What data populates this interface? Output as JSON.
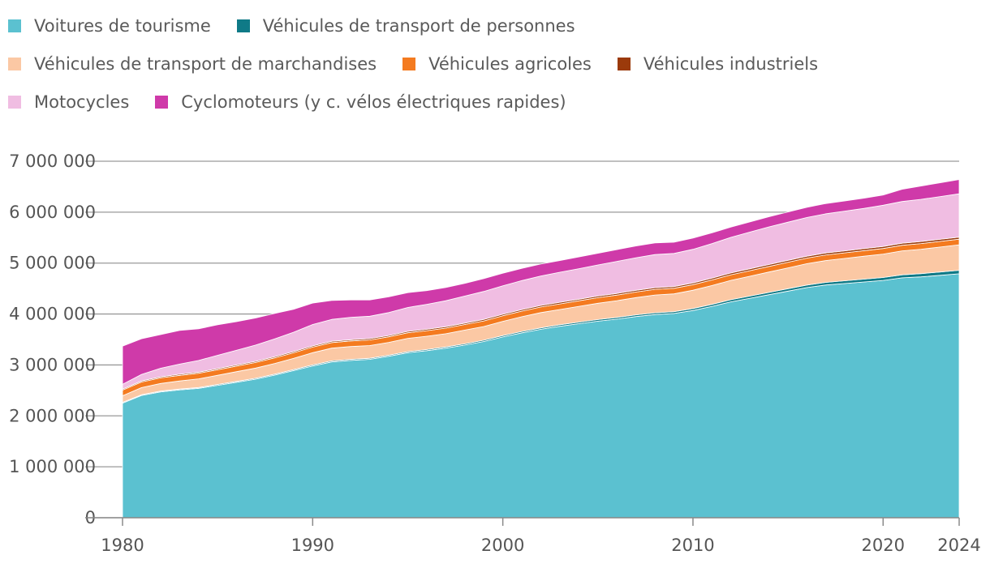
{
  "legend": [
    [
      "Voitures de tourisme",
      "Véhicules de transport de personnes"
    ],
    [
      "Véhicules de transport de marchandises",
      "Véhicules agricoles",
      "Véhicules industriels"
    ],
    [
      "Motocycles",
      "Cyclomoteurs (y c. vélos électriques rapides)"
    ]
  ],
  "chart_data": {
    "type": "area",
    "stacked": true,
    "x": [
      1980,
      1981,
      1982,
      1983,
      1984,
      1985,
      1986,
      1987,
      1988,
      1989,
      1990,
      1991,
      1992,
      1993,
      1994,
      1995,
      1996,
      1997,
      1998,
      1999,
      2000,
      2001,
      2002,
      2003,
      2004,
      2005,
      2006,
      2007,
      2008,
      2009,
      2010,
      2011,
      2012,
      2013,
      2014,
      2015,
      2016,
      2017,
      2018,
      2019,
      2020,
      2021,
      2022,
      2023,
      2024
    ],
    "x_ticks": [
      1980,
      1990,
      2000,
      2010,
      2020,
      2024
    ],
    "y_ticks": [
      0,
      1000000,
      2000000,
      3000000,
      4000000,
      5000000,
      6000000,
      7000000
    ],
    "y_tick_labels": [
      "0",
      "1 000 000",
      "2 000 000",
      "3 000 000",
      "4 000 000",
      "5 000 000",
      "6 000 000",
      "7 000 000"
    ],
    "ylim": [
      0,
      7000000
    ],
    "grid": "horizontal",
    "legend_position": "top",
    "series": [
      {
        "name": "Voitures de tourisme",
        "color": "#5bc1d0",
        "values": [
          2250000,
          2400000,
          2470000,
          2510000,
          2540000,
          2600000,
          2660000,
          2720000,
          2800000,
          2890000,
          2980000,
          3060000,
          3090000,
          3110000,
          3170000,
          3240000,
          3280000,
          3330000,
          3390000,
          3460000,
          3550000,
          3630000,
          3700000,
          3760000,
          3810000,
          3860000,
          3900000,
          3950000,
          3990000,
          4010000,
          4070000,
          4150000,
          4240000,
          4310000,
          4380000,
          4450000,
          4520000,
          4570000,
          4600000,
          4630000,
          4660000,
          4710000,
          4730000,
          4760000,
          4790000
        ]
      },
      {
        "name": "Véhicules de transport de personnes",
        "color": "#0f7a87",
        "values": [
          15000,
          15000,
          16000,
          16000,
          17000,
          17000,
          18000,
          18000,
          19000,
          19000,
          20000,
          20000,
          21000,
          21000,
          22000,
          22000,
          23000,
          23000,
          24000,
          25000,
          26000,
          27000,
          28000,
          29000,
          30000,
          31000,
          32000,
          33000,
          34000,
          35000,
          37000,
          39000,
          41000,
          43000,
          45000,
          47000,
          49000,
          51000,
          53000,
          55000,
          57000,
          60000,
          63000,
          66000,
          69000
        ]
      },
      {
        "name": "Véhicules de transport de marchandises",
        "color": "#fbc8a4",
        "values": [
          130000,
          140000,
          150000,
          160000,
          170000,
          180000,
          190000,
          200000,
          210000,
          220000,
          240000,
          250000,
          250000,
          250000,
          250000,
          260000,
          260000,
          260000,
          270000,
          270000,
          280000,
          290000,
          300000,
          300000,
          310000,
          320000,
          330000,
          340000,
          350000,
          350000,
          360000,
          370000,
          380000,
          390000,
          400000,
          410000,
          420000,
          430000,
          440000,
          450000,
          460000,
          470000,
          480000,
          490000,
          500000
        ]
      },
      {
        "name": "Véhicules agricoles",
        "color": "#f47b20",
        "values": [
          110000,
          110000,
          110000,
          110000,
          110000,
          110000,
          110000,
          110000,
          110000,
          110000,
          110000,
          110000,
          110000,
          110000,
          110000,
          110000,
          110000,
          110000,
          110000,
          110000,
          110000,
          110000,
          110000,
          110000,
          110000,
          110000,
          110000,
          110000,
          110000,
          110000,
          110000,
          110000,
          110000,
          110000,
          110000,
          110000,
          110000,
          110000,
          110000,
          110000,
          110000,
          110000,
          110000,
          110000,
          110000
        ]
      },
      {
        "name": "Véhicules industriels",
        "color": "#9b3a0b",
        "values": [
          20000,
          20000,
          20000,
          21000,
          21000,
          22000,
          22000,
          23000,
          23000,
          24000,
          24000,
          25000,
          25000,
          26000,
          26000,
          27000,
          27000,
          28000,
          28000,
          29000,
          29000,
          30000,
          30000,
          31000,
          31000,
          32000,
          32000,
          33000,
          33000,
          34000,
          34000,
          35000,
          35000,
          36000,
          36000,
          37000,
          37000,
          38000,
          38000,
          39000,
          39000,
          40000,
          40000,
          41000,
          41000
        ]
      },
      {
        "name": "Motocycles",
        "color": "#f0bde2",
        "values": [
          95000,
          130000,
          170000,
          200000,
          230000,
          260000,
          290000,
          320000,
          350000,
          380000,
          420000,
          430000,
          440000,
          440000,
          450000,
          470000,
          490000,
          510000,
          530000,
          550000,
          560000,
          570000,
          580000,
          590000,
          600000,
          610000,
          630000,
          640000,
          650000,
          650000,
          660000,
          680000,
          700000,
          720000,
          740000,
          750000,
          760000,
          770000,
          780000,
          790000,
          810000,
          820000,
          830000,
          840000,
          850000
        ]
      },
      {
        "name": "Cyclomoteurs (y c. vélos électriques rapides)",
        "color": "#cf3aa9",
        "values": [
          750000,
          700000,
          660000,
          660000,
          620000,
          600000,
          560000,
          530000,
          500000,
          450000,
          420000,
          370000,
          340000,
          320000,
          310000,
          290000,
          270000,
          260000,
          250000,
          250000,
          245000,
          240000,
          235000,
          230000,
          230000,
          230000,
          230000,
          230000,
          230000,
          220000,
          220000,
          210000,
          200000,
          200000,
          200000,
          200000,
          200000,
          200000,
          200000,
          200000,
          200000,
          240000,
          260000,
          270000,
          280000
        ]
      }
    ]
  }
}
